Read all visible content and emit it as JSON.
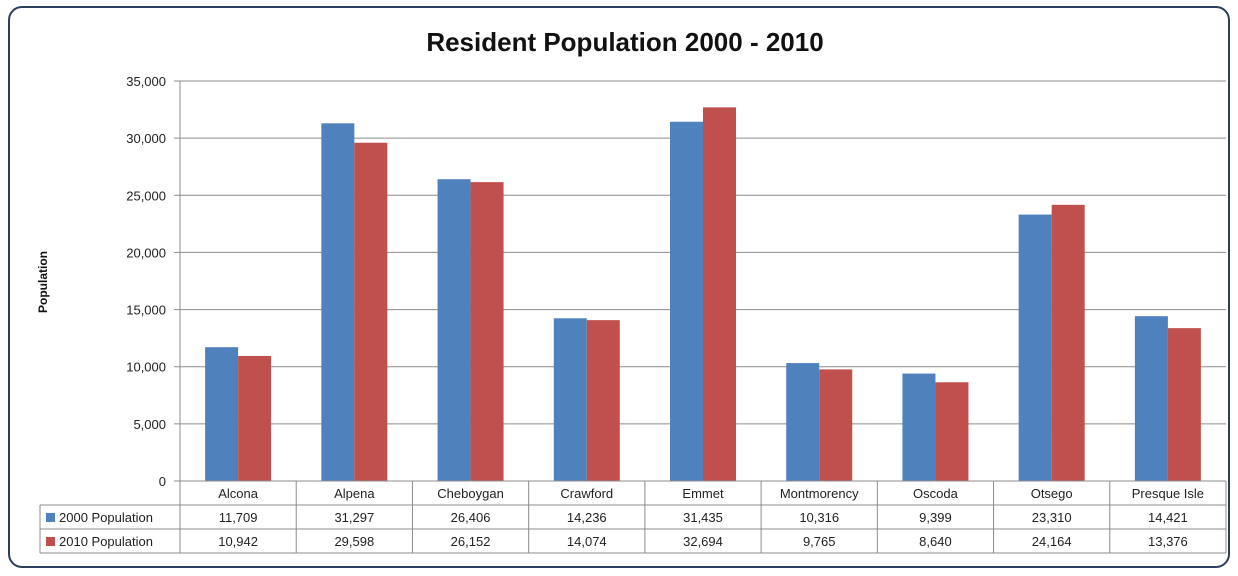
{
  "chart_data": {
    "type": "bar",
    "title": "Resident Population 2000 - 2010",
    "ylabel": "Population",
    "xlabel": "",
    "ylim": [
      0,
      35000
    ],
    "yticks": [
      0,
      5000,
      10000,
      15000,
      20000,
      25000,
      30000,
      35000
    ],
    "ytick_labels": [
      "0",
      "5,000",
      "10,000",
      "15,000",
      "20,000",
      "25,000",
      "30,000",
      "35,000"
    ],
    "grid": true,
    "legend": "data-table",
    "categories": [
      "Alcona",
      "Alpena",
      "Cheboygan",
      "Crawford",
      "Emmet",
      "Montmorency",
      "Oscoda",
      "Otsego",
      "Presque Isle"
    ],
    "series": [
      {
        "name": "2000 Population",
        "color": "#4f81bd",
        "values": [
          11709,
          31297,
          26406,
          14236,
          31435,
          10316,
          9399,
          23310,
          14421
        ],
        "labels": [
          "11,709",
          "31,297",
          "26,406",
          "14,236",
          "31,435",
          "10,316",
          "9,399",
          "23,310",
          "14,421"
        ]
      },
      {
        "name": "2010 Population",
        "color": "#c0504d",
        "values": [
          10942,
          29598,
          26152,
          14074,
          32694,
          9765,
          8640,
          24164,
          13376
        ],
        "labels": [
          "10,942",
          "29,598",
          "26,152",
          "14,074",
          "32,694",
          "9,765",
          "8,640",
          "24,164",
          "13,376"
        ]
      }
    ]
  }
}
